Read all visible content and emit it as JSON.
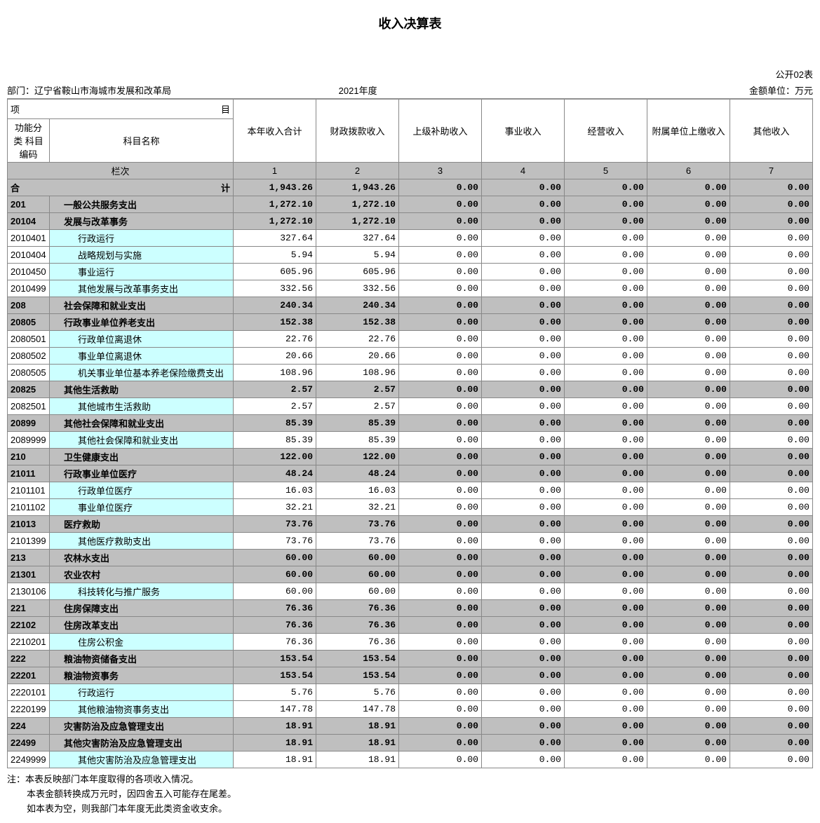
{
  "title": "收入决算表",
  "table_code": "公开02表",
  "dept_label": "部门：",
  "dept_value": "辽宁省鞍山市海城市发展和改革局",
  "year": "2021年度",
  "unit_label": "金额单位：万元",
  "header": {
    "item_left_top": "项",
    "item_right_top": "目",
    "code": "功能分类\n科目编码",
    "name": "科目名称",
    "cols": [
      "本年收入合计",
      "财政拨款收入",
      "上级补助收入",
      "事业收入",
      "经营收入",
      "附属单位上缴收入",
      "其他收入"
    ]
  },
  "lanci_label": "栏次",
  "lanci_nums": [
    "1",
    "2",
    "3",
    "4",
    "5",
    "6",
    "7"
  ],
  "total_row_left": "合",
  "total_row_right": "计",
  "rows": [
    {
      "type": "total",
      "code": "",
      "name": "",
      "v": [
        "1,943.26",
        "1,943.26",
        "0.00",
        "0.00",
        "0.00",
        "0.00",
        "0.00"
      ]
    },
    {
      "type": "grey",
      "code": "201",
      "name": "一般公共服务支出",
      "indent": 1,
      "v": [
        "1,272.10",
        "1,272.10",
        "0.00",
        "0.00",
        "0.00",
        "0.00",
        "0.00"
      ]
    },
    {
      "type": "grey",
      "code": "20104",
      "name": "发展与改革事务",
      "indent": 1,
      "v": [
        "1,272.10",
        "1,272.10",
        "0.00",
        "0.00",
        "0.00",
        "0.00",
        "0.00"
      ]
    },
    {
      "type": "cyan",
      "code": "2010401",
      "name": "行政运行",
      "indent": 2,
      "v": [
        "327.64",
        "327.64",
        "0.00",
        "0.00",
        "0.00",
        "0.00",
        "0.00"
      ]
    },
    {
      "type": "cyan",
      "code": "2010404",
      "name": "战略规划与实施",
      "indent": 2,
      "v": [
        "5.94",
        "5.94",
        "0.00",
        "0.00",
        "0.00",
        "0.00",
        "0.00"
      ]
    },
    {
      "type": "cyan",
      "code": "2010450",
      "name": "事业运行",
      "indent": 2,
      "v": [
        "605.96",
        "605.96",
        "0.00",
        "0.00",
        "0.00",
        "0.00",
        "0.00"
      ]
    },
    {
      "type": "cyan",
      "code": "2010499",
      "name": "其他发展与改革事务支出",
      "indent": 2,
      "v": [
        "332.56",
        "332.56",
        "0.00",
        "0.00",
        "0.00",
        "0.00",
        "0.00"
      ]
    },
    {
      "type": "grey",
      "code": "208",
      "name": "社会保障和就业支出",
      "indent": 1,
      "v": [
        "240.34",
        "240.34",
        "0.00",
        "0.00",
        "0.00",
        "0.00",
        "0.00"
      ]
    },
    {
      "type": "grey",
      "code": "20805",
      "name": "行政事业单位养老支出",
      "indent": 1,
      "v": [
        "152.38",
        "152.38",
        "0.00",
        "0.00",
        "0.00",
        "0.00",
        "0.00"
      ]
    },
    {
      "type": "cyan",
      "code": "2080501",
      "name": "行政单位离退休",
      "indent": 2,
      "v": [
        "22.76",
        "22.76",
        "0.00",
        "0.00",
        "0.00",
        "0.00",
        "0.00"
      ]
    },
    {
      "type": "cyan",
      "code": "2080502",
      "name": "事业单位离退休",
      "indent": 2,
      "v": [
        "20.66",
        "20.66",
        "0.00",
        "0.00",
        "0.00",
        "0.00",
        "0.00"
      ]
    },
    {
      "type": "cyan",
      "code": "2080505",
      "name": "机关事业单位基本养老保险缴费支出",
      "indent": 2,
      "v": [
        "108.96",
        "108.96",
        "0.00",
        "0.00",
        "0.00",
        "0.00",
        "0.00"
      ]
    },
    {
      "type": "grey",
      "code": "20825",
      "name": "其他生活救助",
      "indent": 1,
      "v": [
        "2.57",
        "2.57",
        "0.00",
        "0.00",
        "0.00",
        "0.00",
        "0.00"
      ]
    },
    {
      "type": "cyan",
      "code": "2082501",
      "name": "其他城市生活救助",
      "indent": 2,
      "v": [
        "2.57",
        "2.57",
        "0.00",
        "0.00",
        "0.00",
        "0.00",
        "0.00"
      ]
    },
    {
      "type": "grey",
      "code": "20899",
      "name": "其他社会保障和就业支出",
      "indent": 1,
      "v": [
        "85.39",
        "85.39",
        "0.00",
        "0.00",
        "0.00",
        "0.00",
        "0.00"
      ]
    },
    {
      "type": "cyan",
      "code": "2089999",
      "name": "其他社会保障和就业支出",
      "indent": 2,
      "v": [
        "85.39",
        "85.39",
        "0.00",
        "0.00",
        "0.00",
        "0.00",
        "0.00"
      ]
    },
    {
      "type": "grey",
      "code": "210",
      "name": "卫生健康支出",
      "indent": 1,
      "v": [
        "122.00",
        "122.00",
        "0.00",
        "0.00",
        "0.00",
        "0.00",
        "0.00"
      ]
    },
    {
      "type": "grey",
      "code": "21011",
      "name": "行政事业单位医疗",
      "indent": 1,
      "v": [
        "48.24",
        "48.24",
        "0.00",
        "0.00",
        "0.00",
        "0.00",
        "0.00"
      ]
    },
    {
      "type": "cyan",
      "code": "2101101",
      "name": "行政单位医疗",
      "indent": 2,
      "v": [
        "16.03",
        "16.03",
        "0.00",
        "0.00",
        "0.00",
        "0.00",
        "0.00"
      ]
    },
    {
      "type": "cyan",
      "code": "2101102",
      "name": "事业单位医疗",
      "indent": 2,
      "v": [
        "32.21",
        "32.21",
        "0.00",
        "0.00",
        "0.00",
        "0.00",
        "0.00"
      ]
    },
    {
      "type": "grey",
      "code": "21013",
      "name": "医疗救助",
      "indent": 1,
      "v": [
        "73.76",
        "73.76",
        "0.00",
        "0.00",
        "0.00",
        "0.00",
        "0.00"
      ]
    },
    {
      "type": "cyan",
      "code": "2101399",
      "name": "其他医疗救助支出",
      "indent": 2,
      "v": [
        "73.76",
        "73.76",
        "0.00",
        "0.00",
        "0.00",
        "0.00",
        "0.00"
      ]
    },
    {
      "type": "grey",
      "code": "213",
      "name": "农林水支出",
      "indent": 1,
      "v": [
        "60.00",
        "60.00",
        "0.00",
        "0.00",
        "0.00",
        "0.00",
        "0.00"
      ]
    },
    {
      "type": "grey",
      "code": "21301",
      "name": "农业农村",
      "indent": 1,
      "v": [
        "60.00",
        "60.00",
        "0.00",
        "0.00",
        "0.00",
        "0.00",
        "0.00"
      ]
    },
    {
      "type": "cyan",
      "code": "2130106",
      "name": "科技转化与推广服务",
      "indent": 2,
      "v": [
        "60.00",
        "60.00",
        "0.00",
        "0.00",
        "0.00",
        "0.00",
        "0.00"
      ]
    },
    {
      "type": "grey",
      "code": "221",
      "name": "住房保障支出",
      "indent": 1,
      "v": [
        "76.36",
        "76.36",
        "0.00",
        "0.00",
        "0.00",
        "0.00",
        "0.00"
      ]
    },
    {
      "type": "grey",
      "code": "22102",
      "name": "住房改革支出",
      "indent": 1,
      "v": [
        "76.36",
        "76.36",
        "0.00",
        "0.00",
        "0.00",
        "0.00",
        "0.00"
      ]
    },
    {
      "type": "cyan",
      "code": "2210201",
      "name": "住房公积金",
      "indent": 2,
      "v": [
        "76.36",
        "76.36",
        "0.00",
        "0.00",
        "0.00",
        "0.00",
        "0.00"
      ]
    },
    {
      "type": "grey",
      "code": "222",
      "name": "粮油物资储备支出",
      "indent": 1,
      "v": [
        "153.54",
        "153.54",
        "0.00",
        "0.00",
        "0.00",
        "0.00",
        "0.00"
      ]
    },
    {
      "type": "grey",
      "code": "22201",
      "name": "粮油物资事务",
      "indent": 1,
      "v": [
        "153.54",
        "153.54",
        "0.00",
        "0.00",
        "0.00",
        "0.00",
        "0.00"
      ]
    },
    {
      "type": "cyan",
      "code": "2220101",
      "name": "行政运行",
      "indent": 2,
      "v": [
        "5.76",
        "5.76",
        "0.00",
        "0.00",
        "0.00",
        "0.00",
        "0.00"
      ]
    },
    {
      "type": "cyan",
      "code": "2220199",
      "name": "其他粮油物资事务支出",
      "indent": 2,
      "v": [
        "147.78",
        "147.78",
        "0.00",
        "0.00",
        "0.00",
        "0.00",
        "0.00"
      ]
    },
    {
      "type": "grey",
      "code": "224",
      "name": "灾害防治及应急管理支出",
      "indent": 1,
      "v": [
        "18.91",
        "18.91",
        "0.00",
        "0.00",
        "0.00",
        "0.00",
        "0.00"
      ]
    },
    {
      "type": "grey",
      "code": "22499",
      "name": "其他灾害防治及应急管理支出",
      "indent": 1,
      "v": [
        "18.91",
        "18.91",
        "0.00",
        "0.00",
        "0.00",
        "0.00",
        "0.00"
      ]
    },
    {
      "type": "cyan",
      "code": "2249999",
      "name": "其他灾害防治及应急管理支出",
      "indent": 2,
      "v": [
        "18.91",
        "18.91",
        "0.00",
        "0.00",
        "0.00",
        "0.00",
        "0.00"
      ]
    }
  ],
  "notes": [
    "注：本表反映部门本年度取得的各项收入情况。",
    "本表金额转换成万元时，因四舍五入可能存在尾差。",
    "如本表为空，则我部门本年度无此类资金收支余。"
  ],
  "colors": {
    "grey": "#bfbfbf",
    "cyan": "#ccffff",
    "border": "#888888",
    "text": "#000000",
    "bg": "#ffffff"
  }
}
